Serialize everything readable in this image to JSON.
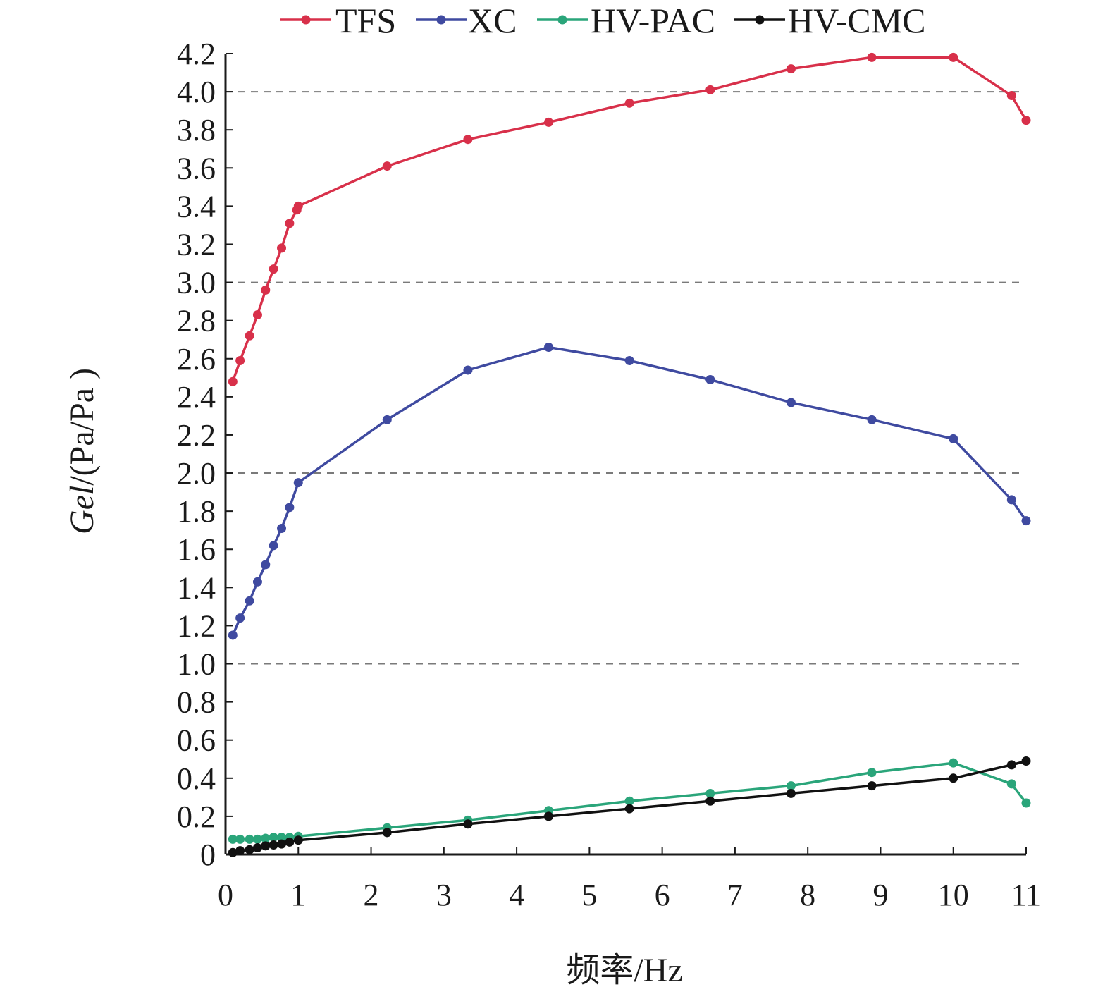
{
  "chart_data": {
    "type": "line",
    "xlabel": "频率/Hz",
    "ylabel_italic": "Gel",
    "ylabel_rest": "/(Pa/Pa )",
    "xlim": [
      0,
      11
    ],
    "ylim": [
      0,
      4.2
    ],
    "x_ticks": [
      "0",
      "1",
      "2",
      "3",
      "4",
      "5",
      "6",
      "7",
      "8",
      "9",
      "10",
      "11"
    ],
    "y_ticks": [
      "0",
      "0.2",
      "0.4",
      "0.6",
      "0.8",
      "1.0",
      "1.2",
      "1.4",
      "1.6",
      "1.8",
      "2.0",
      "2.2",
      "2.4",
      "2.6",
      "2.8",
      "3.0",
      "3.2",
      "3.4",
      "3.6",
      "3.8",
      "4.0",
      "4.2"
    ],
    "gridlines_y": [
      1.0,
      2.0,
      3.0,
      4.0
    ],
    "legend_position": "top",
    "series": [
      {
        "name": "TFS",
        "color": "#d8304a",
        "x": [
          0.1,
          0.2,
          0.33,
          0.44,
          0.55,
          0.66,
          0.77,
          0.88,
          0.98,
          1.0,
          2.22,
          3.33,
          4.44,
          5.55,
          6.66,
          7.77,
          8.88,
          10.0,
          10.8,
          11.0
        ],
        "y": [
          2.48,
          2.59,
          2.72,
          2.83,
          2.96,
          3.07,
          3.18,
          3.31,
          3.38,
          3.4,
          3.61,
          3.75,
          3.84,
          3.94,
          4.01,
          4.12,
          4.18,
          4.18,
          3.98,
          3.85
        ]
      },
      {
        "name": "XC",
        "color": "#3f4aa0",
        "x": [
          0.1,
          0.2,
          0.33,
          0.44,
          0.55,
          0.66,
          0.77,
          0.88,
          1.0,
          2.22,
          3.33,
          4.44,
          5.55,
          6.66,
          7.77,
          8.88,
          10.0,
          10.8,
          11.0
        ],
        "y": [
          1.15,
          1.24,
          1.33,
          1.43,
          1.52,
          1.62,
          1.71,
          1.82,
          1.95,
          2.28,
          2.54,
          2.66,
          2.59,
          2.49,
          2.37,
          2.28,
          2.18,
          1.86,
          1.75
        ]
      },
      {
        "name": "HV-PAC",
        "color": "#2aa57a",
        "x": [
          0.1,
          0.2,
          0.33,
          0.44,
          0.55,
          0.66,
          0.77,
          0.88,
          1.0,
          2.22,
          3.33,
          4.44,
          5.55,
          6.66,
          7.77,
          8.88,
          10.0,
          10.8,
          11.0
        ],
        "y": [
          0.08,
          0.08,
          0.08,
          0.08,
          0.085,
          0.09,
          0.09,
          0.09,
          0.095,
          0.14,
          0.18,
          0.23,
          0.28,
          0.32,
          0.36,
          0.43,
          0.48,
          0.37,
          0.27
        ]
      },
      {
        "name": "HV-CMC",
        "color": "#111111",
        "x": [
          0.1,
          0.2,
          0.33,
          0.44,
          0.55,
          0.66,
          0.77,
          0.88,
          1.0,
          2.22,
          3.33,
          4.44,
          5.55,
          6.66,
          7.77,
          8.88,
          10.0,
          10.8,
          11.0
        ],
        "y": [
          0.01,
          0.02,
          0.025,
          0.035,
          0.045,
          0.05,
          0.055,
          0.065,
          0.075,
          0.115,
          0.16,
          0.2,
          0.24,
          0.28,
          0.32,
          0.36,
          0.4,
          0.47,
          0.49
        ]
      }
    ]
  }
}
